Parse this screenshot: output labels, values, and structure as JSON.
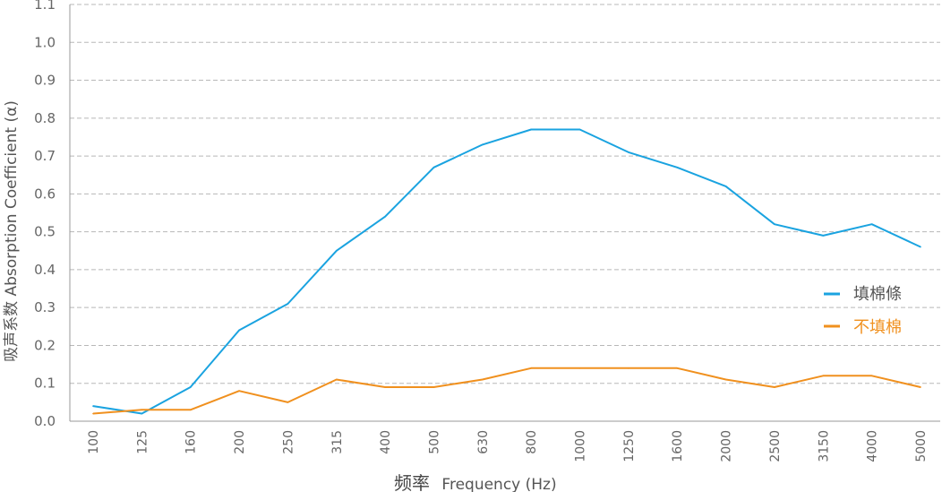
{
  "chart_data": {
    "type": "line",
    "xlabel_cn": "频率",
    "xlabel_en": "Frequency (Hz)",
    "ylabel": "吸声系数 Absorption Coefficient (α)",
    "categories": [
      "100",
      "125",
      "160",
      "200",
      "250",
      "315",
      "400",
      "500",
      "630",
      "800",
      "1000",
      "1250",
      "1600",
      "2000",
      "2500",
      "3150",
      "4000",
      "5000"
    ],
    "ylim": [
      0,
      1.1
    ],
    "yticks": [
      "0.0",
      "0.1",
      "0.2",
      "0.3",
      "0.4",
      "0.5",
      "0.6",
      "0.7",
      "0.8",
      "0.9",
      "1.0",
      "1.1"
    ],
    "grid": true,
    "legend_position": "right",
    "series": [
      {
        "name": "填棉條",
        "color": "#1aa3e0",
        "values": [
          0.04,
          0.02,
          0.09,
          0.24,
          0.31,
          0.45,
          0.54,
          0.67,
          0.73,
          0.77,
          0.77,
          0.71,
          0.67,
          0.62,
          0.52,
          0.49,
          0.52,
          0.46
        ]
      },
      {
        "name": "不填棉",
        "color": "#f0901e",
        "values": [
          0.02,
          0.03,
          0.03,
          0.08,
          0.05,
          0.11,
          0.09,
          0.09,
          0.11,
          0.14,
          0.14,
          0.14,
          0.14,
          0.11,
          0.09,
          0.12,
          0.12,
          0.09
        ]
      }
    ]
  }
}
